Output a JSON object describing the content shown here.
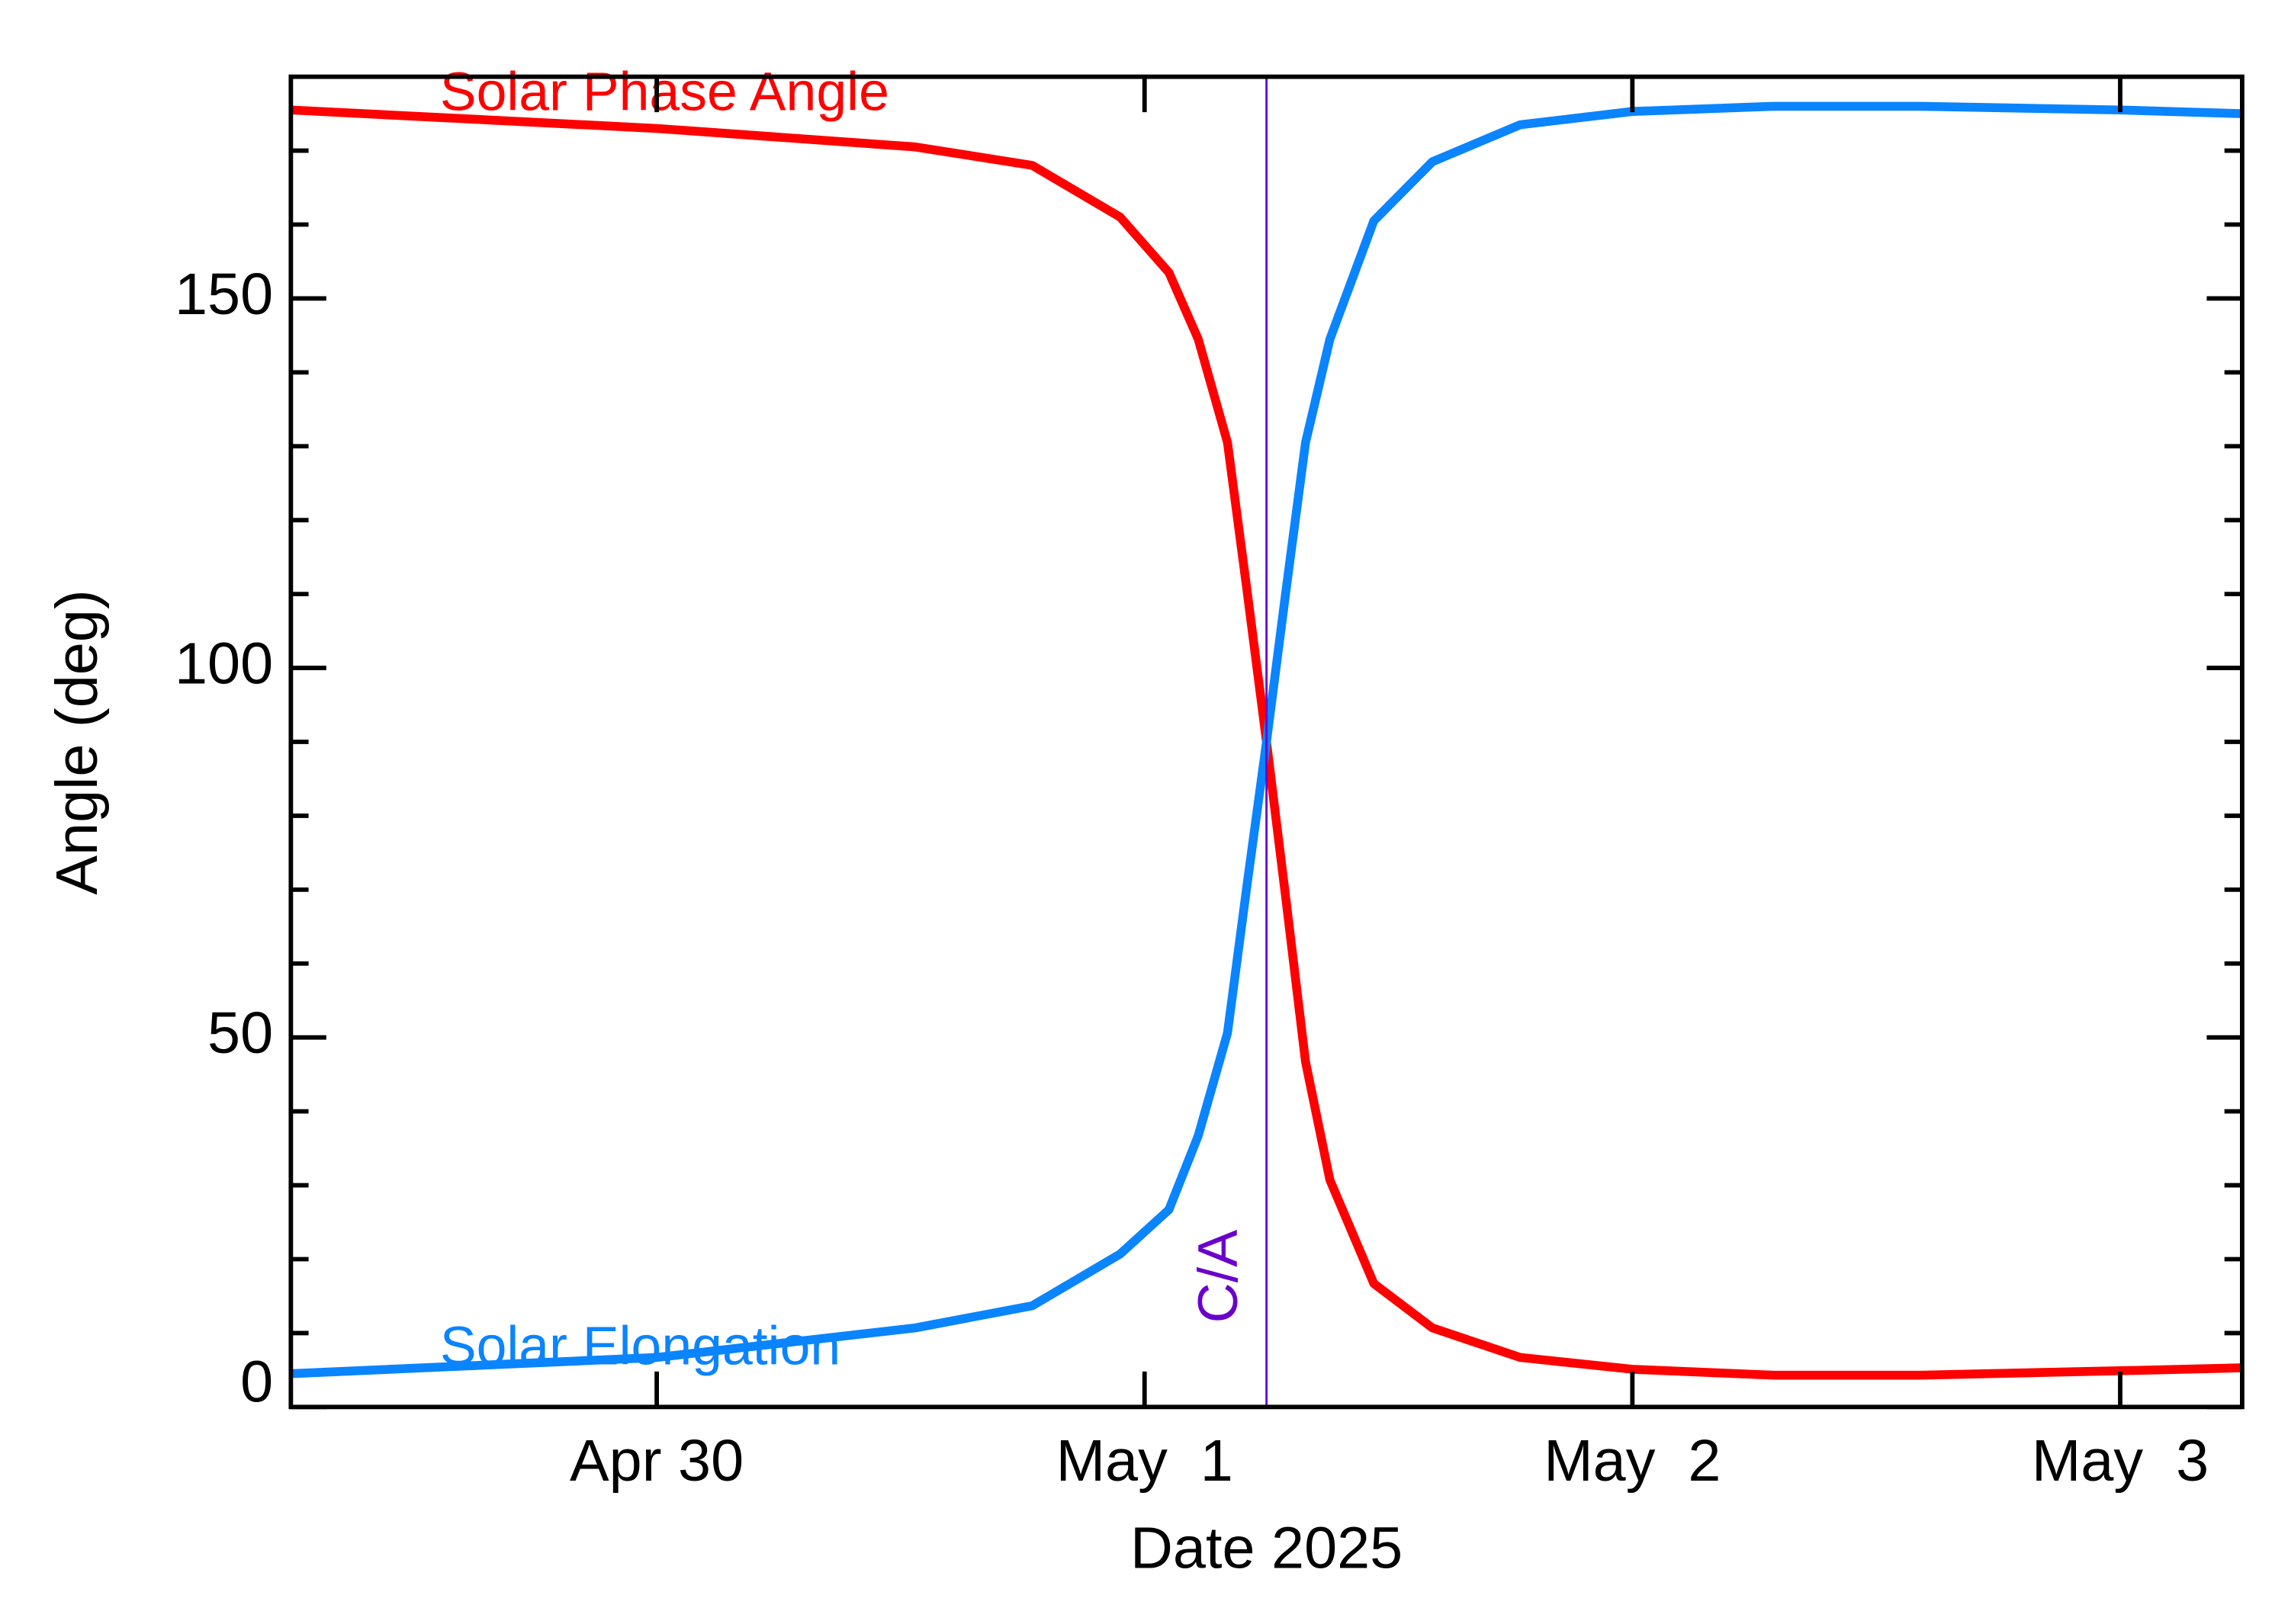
{
  "chart_data": {
    "type": "line",
    "x_label": "Date 2025",
    "y_label": "Angle (deg)",
    "x": [
      119.25,
      120,
      120.53,
      120.77,
      120.95,
      121.05,
      121.11,
      121.17,
      121.21,
      121.25,
      121.29,
      121.33,
      121.38,
      121.47,
      121.59,
      121.77,
      122,
      122.29,
      122.59,
      123,
      123.25
    ],
    "series": [
      {
        "name": "Solar Phase Angle",
        "color": "#ff0000",
        "values": [
          175.5,
          173,
          170.5,
          168,
          161,
          153.5,
          144.5,
          130.5,
          110.5,
          90,
          68.6,
          46.7,
          30.7,
          16.7,
          10.7,
          6.7,
          5.1,
          4.3,
          4.3,
          4.9,
          5.3
        ]
      },
      {
        "name": "Solar Elongation",
        "color": "#0a84ff",
        "values": [
          4.5,
          6.7,
          10.7,
          13.7,
          20.7,
          26.7,
          36.7,
          50.6,
          70.6,
          90,
          110.5,
          130.5,
          144.5,
          160.5,
          168.5,
          173.5,
          175.3,
          176,
          176,
          175.5,
          175
        ]
      }
    ],
    "closest_approach": {
      "label": "C/A",
      "x": 121.25,
      "color": "#6a00cc"
    },
    "xlim": [
      119.25,
      123.25
    ],
    "xticks": [
      {
        "value": 120,
        "label": "Apr 30"
      },
      {
        "value": 121,
        "label": "May  1"
      },
      {
        "value": 122,
        "label": "May  2"
      },
      {
        "value": 123,
        "label": "May  3"
      }
    ],
    "ylim": [
      0,
      180
    ],
    "yticks": [
      0,
      50,
      100,
      150
    ],
    "yminorticks": [
      10,
      20,
      30,
      40,
      60,
      70,
      80,
      90,
      110,
      120,
      130,
      140,
      160,
      170
    ]
  }
}
